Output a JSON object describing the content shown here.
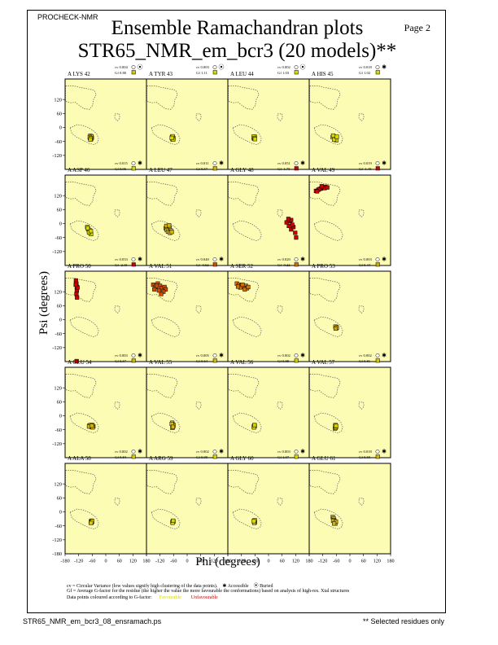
{
  "header": {
    "program": "PROCHECK-NMR",
    "page": "Page  2",
    "title_line1": "Ensemble Ramachandran plots",
    "title_line2": "STR65_NMR_em_bcr3 (20 models)**"
  },
  "colors": {
    "panel_bg": "#fcfcb4",
    "region_line": "#555555",
    "favourable": "#d8d800",
    "unfavourable": "#cc0000",
    "point_edge": "#000000"
  },
  "chart_data": {
    "type": "scatter",
    "title": "Ensemble Ramachandran plots",
    "xlabel": "Phi (degrees)",
    "ylabel": "Psi (degrees)",
    "xlim": [
      -180,
      180
    ],
    "ylim": [
      -180,
      180
    ],
    "xticks": [
      "-180",
      "-120",
      "-60",
      "0",
      "60",
      "120",
      "180"
    ],
    "yticks": [
      "120",
      "60",
      "0",
      "-60",
      "-120"
    ],
    "ytick_bottom": "-180",
    "legend": {
      "accessible": "Accessible",
      "buried": "Buried",
      "accessible_symbol": "✱",
      "buried_symbol": "⦿"
    },
    "panels": [
      {
        "residue": "A LYS 42",
        "cv": "cv 0.004",
        "gf": "Gf 0.80",
        "gf_value": 0.8,
        "acc": "buried",
        "points": [
          [
            -68,
            -38
          ],
          [
            -66,
            -42
          ],
          [
            -70,
            -45
          ],
          [
            -64,
            -40
          ],
          [
            -67,
            -48
          ],
          [
            -62,
            -44
          ],
          [
            -69,
            -36
          ],
          [
            -65,
            -50
          ],
          [
            -63,
            -38
          ],
          [
            -71,
            -42
          ],
          [
            -66,
            -46
          ],
          [
            -68,
            -52
          ]
        ]
      },
      {
        "residue": "A TYR 43",
        "cv": "cv 0.003",
        "gf": "Gf 1.11",
        "gf_value": 1.11,
        "acc": "buried",
        "points": [
          [
            -65,
            -40
          ],
          [
            -63,
            -44
          ],
          [
            -67,
            -42
          ],
          [
            -61,
            -46
          ],
          [
            -66,
            -50
          ],
          [
            -64,
            -38
          ],
          [
            -62,
            -52
          ],
          [
            -68,
            -45
          ]
        ]
      },
      {
        "residue": "A LEU 44",
        "cv": "cv 0.002",
        "gf": "Gf 1.03",
        "gf_value": 1.03,
        "acc": "buried",
        "points": [
          [
            -63,
            -42
          ],
          [
            -65,
            -45
          ],
          [
            -61,
            -40
          ],
          [
            -64,
            -48
          ],
          [
            -66,
            -40
          ],
          [
            -62,
            -46
          ],
          [
            -60,
            -50
          ]
        ]
      },
      {
        "residue": "A HIS 45",
        "cv": "cv 0.018",
        "gf": "Gf 1.02",
        "gf_value": 1.02,
        "acc": "accessible",
        "points": [
          [
            -72,
            -38
          ],
          [
            -68,
            -45
          ],
          [
            -64,
            -50
          ],
          [
            -76,
            -42
          ],
          [
            -60,
            -55
          ],
          [
            -70,
            -52
          ],
          [
            -58,
            -40
          ],
          [
            -74,
            -35
          ]
        ]
      },
      {
        "residue": "A ASP 46",
        "cv": "cv 0.015",
        "gf": "Gf 0.96",
        "gf_value": 0.96,
        "acc": "accessible",
        "points": [
          [
            -82,
            -15
          ],
          [
            -78,
            -22
          ],
          [
            -75,
            -30
          ],
          [
            -70,
            -35
          ],
          [
            -72,
            -28
          ],
          [
            -68,
            -40
          ],
          [
            -65,
            -45
          ],
          [
            -80,
            -20
          ],
          [
            -74,
            -38
          ],
          [
            -66,
            -32
          ]
        ]
      },
      {
        "residue": "A LEU 47",
        "cv": "cv 0.011",
        "gf": "Gf 0.57",
        "gf_value": 0.57,
        "acc": "accessible",
        "points": [
          [
            -95,
            -20
          ],
          [
            -88,
            -15
          ],
          [
            -82,
            -25
          ],
          [
            -78,
            -18
          ],
          [
            -72,
            -30
          ],
          [
            -90,
            -28
          ],
          [
            -85,
            -35
          ],
          [
            -76,
            -40
          ],
          [
            -68,
            -36
          ],
          [
            -92,
            -10
          ],
          [
            -80,
            -8
          ]
        ]
      },
      {
        "residue": "A GLY 48",
        "cv": "cv 0.051",
        "gf": "Gf -1.75",
        "gf_value": -1.75,
        "acc": "accessible",
        "points": [
          [
            80,
            5
          ],
          [
            90,
            -10
          ],
          [
            100,
            -25
          ],
          [
            95,
            10
          ],
          [
            110,
            -15
          ],
          [
            118,
            -40
          ],
          [
            122,
            -60
          ],
          [
            100,
            15
          ],
          [
            105,
            -5
          ],
          [
            88,
            20
          ]
        ]
      },
      {
        "residue": "A VAL 49",
        "cv": "cv 0.019",
        "gf": "Gf -1.45",
        "gf_value": -1.45,
        "acc": "accessible",
        "points": [
          [
            -150,
            140
          ],
          [
            -140,
            145
          ],
          [
            -128,
            150
          ],
          [
            -118,
            155
          ],
          [
            -108,
            158
          ],
          [
            -135,
            148
          ],
          [
            -145,
            138
          ],
          [
            -112,
            152
          ],
          [
            -125,
            160
          ],
          [
            -100,
            155
          ]
        ]
      },
      {
        "residue": "A PRO 50",
        "cv": "cv 0.033",
        "gf": "Gf -2.15",
        "gf_value": -2.15,
        "acc": "accessible",
        "points": [
          [
            -132,
            168
          ],
          [
            -130,
            155
          ],
          [
            -128,
            140
          ],
          [
            -128,
            125
          ],
          [
            -130,
            110
          ],
          [
            -127,
            95
          ],
          [
            -125,
            138
          ],
          [
            -133,
            150
          ],
          [
            -129,
            -178
          ]
        ]
      },
      {
        "residue": "A VAL 51",
        "cv": "cv 0.040",
        "gf": "Gf -0.62",
        "gf_value": -0.62,
        "acc": "accessible",
        "points": [
          [
            -150,
            150
          ],
          [
            -140,
            140
          ],
          [
            -130,
            155
          ],
          [
            -120,
            145
          ],
          [
            -112,
            135
          ],
          [
            -100,
            140
          ],
          [
            -95,
            130
          ],
          [
            -105,
            120
          ],
          [
            -115,
            110
          ],
          [
            -125,
            125
          ],
          [
            -135,
            145
          ],
          [
            -145,
            130
          ]
        ]
      },
      {
        "residue": "A SER 52",
        "cv": "cv 0.020",
        "gf": "Gf -0.22",
        "gf_value": -0.22,
        "acc": "accessible",
        "points": [
          [
            -140,
            155
          ],
          [
            -130,
            150
          ],
          [
            -120,
            145
          ],
          [
            -110,
            140
          ],
          [
            -100,
            145
          ],
          [
            -95,
            135
          ],
          [
            -125,
            138
          ],
          [
            -115,
            150
          ],
          [
            -105,
            130
          ],
          [
            -135,
            142
          ],
          [
            -90,
            140
          ]
        ]
      },
      {
        "residue": "A PRO 53",
        "cv": "cv 0.003",
        "gf": "Gf 0.44",
        "gf_value": 0.44,
        "acc": "accessible",
        "points": [
          [
            -62,
            -32
          ],
          [
            -60,
            -36
          ],
          [
            -64,
            -30
          ],
          [
            -58,
            -34
          ],
          [
            -63,
            -38
          ]
        ]
      },
      {
        "residue": "A GLU 54",
        "cv": "cv 0.003",
        "gf": "Gf 0.57",
        "gf_value": 0.57,
        "acc": "accessible",
        "points": [
          [
            -72,
            -42
          ],
          [
            -60,
            -40
          ],
          [
            -55,
            -45
          ],
          [
            -64,
            -48
          ],
          [
            -68,
            -40
          ],
          [
            -58,
            -50
          ],
          [
            -74,
            -46
          ],
          [
            -62,
            -43
          ]
        ]
      },
      {
        "residue": "A VAL 55",
        "cv": "cv 0.005",
        "gf": "Gf 0.64",
        "gf_value": 0.64,
        "acc": "accessible",
        "points": [
          [
            -66,
            -30
          ],
          [
            -64,
            -38
          ],
          [
            -62,
            -45
          ],
          [
            -65,
            -52
          ],
          [
            -60,
            -40
          ],
          [
            -68,
            -35
          ],
          [
            -63,
            -48
          ]
        ]
      },
      {
        "residue": "A VAL 56",
        "cv": "cv 0.002",
        "gf": "Gf 0.88",
        "gf_value": 0.88,
        "acc": "accessible",
        "points": [
          [
            -63,
            -42
          ],
          [
            -65,
            -46
          ],
          [
            -61,
            -44
          ],
          [
            -64,
            -50
          ],
          [
            -62,
            -40
          ]
        ]
      },
      {
        "residue": "A VAL 57",
        "cv": "cv 0.002",
        "gf": "Gf 0.81",
        "gf_value": 0.81,
        "acc": "accessible",
        "points": [
          [
            -64,
            -40
          ],
          [
            -62,
            -48
          ],
          [
            -66,
            -55
          ],
          [
            -63,
            -52
          ],
          [
            -65,
            -45
          ],
          [
            -61,
            -44
          ]
        ]
      },
      {
        "residue": "A ALA 58",
        "cv": "cv 0.002",
        "gf": "Gf 0.84",
        "gf_value": 0.84,
        "acc": "accessible",
        "points": [
          [
            -64,
            -38
          ],
          [
            -62,
            -42
          ],
          [
            -66,
            -44
          ],
          [
            -63,
            -46
          ],
          [
            -60,
            -40
          ],
          [
            -65,
            -48
          ]
        ]
      },
      {
        "residue": "A ARG 59",
        "cv": "cv 0.002",
        "gf": "Gf 0.99",
        "gf_value": 0.99,
        "acc": "accessible",
        "points": [
          [
            -63,
            -40
          ],
          [
            -65,
            -44
          ],
          [
            -61,
            -42
          ],
          [
            -64,
            -47
          ],
          [
            -62,
            -38
          ]
        ]
      },
      {
        "residue": "A GLY 60",
        "cv": "cv 0.003",
        "gf": "Gf 1.07",
        "gf_value": 1.07,
        "acc": "accessible",
        "points": [
          [
            -62,
            -38
          ],
          [
            -64,
            -42
          ],
          [
            -60,
            -45
          ],
          [
            -63,
            -48
          ],
          [
            -61,
            -36
          ],
          [
            -65,
            -40
          ]
        ]
      },
      {
        "residue": "A GLU 61",
        "cv": "cv 0.018",
        "gf": "Gf 0.59",
        "gf_value": 0.59,
        "acc": "accessible",
        "points": [
          [
            -76,
            -22
          ],
          [
            -72,
            -28
          ],
          [
            -70,
            -35
          ],
          [
            -68,
            -40
          ],
          [
            -66,
            -45
          ],
          [
            -64,
            -50
          ],
          [
            -74,
            -38
          ],
          [
            -62,
            -42
          ],
          [
            -70,
            -50
          ]
        ]
      }
    ]
  },
  "footnotes": {
    "cv_note": "cv = Circular Variance (low values signify high clustering of the data points).",
    "accessible": "Accessible",
    "buried": "Buried",
    "gf_note": "Gf = Average G-factor for the residue (the higher the value the more favourable the conformations) based on analysis of high-res. Xtal structures",
    "colour_note": "Data points coloured according to G-factor:",
    "favourable": "Favourable",
    "unfavourable": "Unfavourable"
  },
  "footer": {
    "file": "STR65_NMR_em_bcr3_08_ensramach.ps",
    "selected": "** Selected residues only"
  }
}
